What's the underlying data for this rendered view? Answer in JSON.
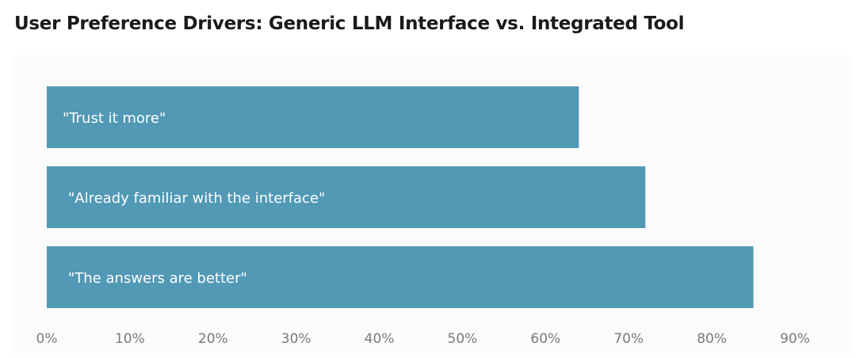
{
  "title": "User Preference Drivers: Generic LLM Interface vs. Integrated Tool",
  "chart_data": {
    "type": "bar",
    "orientation": "horizontal",
    "title": "User Preference Drivers: Generic LLM Interface vs. Integrated Tool",
    "categories": [
      "\"Trust it more\"",
      "\"Already familiar with the interface\"",
      "\"The answers are better\""
    ],
    "values": [
      64,
      72,
      85
    ],
    "unit": "%",
    "xlim": [
      0,
      90
    ],
    "xticks": [
      "0%",
      "10%",
      "20%",
      "30%",
      "40%",
      "50%",
      "60%",
      "70%",
      "80%",
      "90%"
    ],
    "grid": false,
    "legend": "none",
    "bar_color": "#5199b5",
    "label_color": "#ffffff",
    "tick_color": "#7a7a7a"
  }
}
